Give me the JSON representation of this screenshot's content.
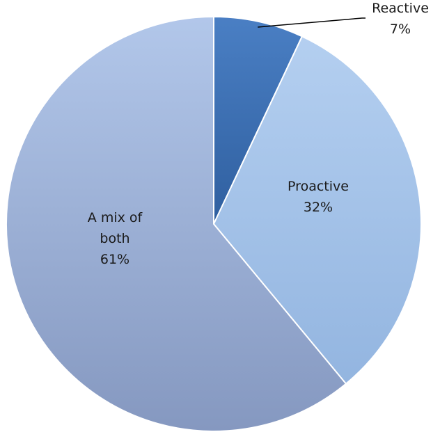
{
  "chart_data": {
    "type": "pie",
    "categories": [
      "Reactive",
      "Proactive",
      "A mix of both"
    ],
    "values": [
      7,
      32,
      61
    ],
    "value_labels": [
      "7%",
      "32%",
      "61%"
    ],
    "label_lines": [
      [
        "Reactive"
      ],
      [
        "Proactive"
      ],
      [
        "A mix of",
        "both"
      ]
    ],
    "colors": [
      "#3a6db3",
      "#a3c1e6",
      "#9aaed5"
    ],
    "title": "",
    "legend": "none",
    "start_angle": "12 o'clock",
    "direction": "clockwise"
  }
}
